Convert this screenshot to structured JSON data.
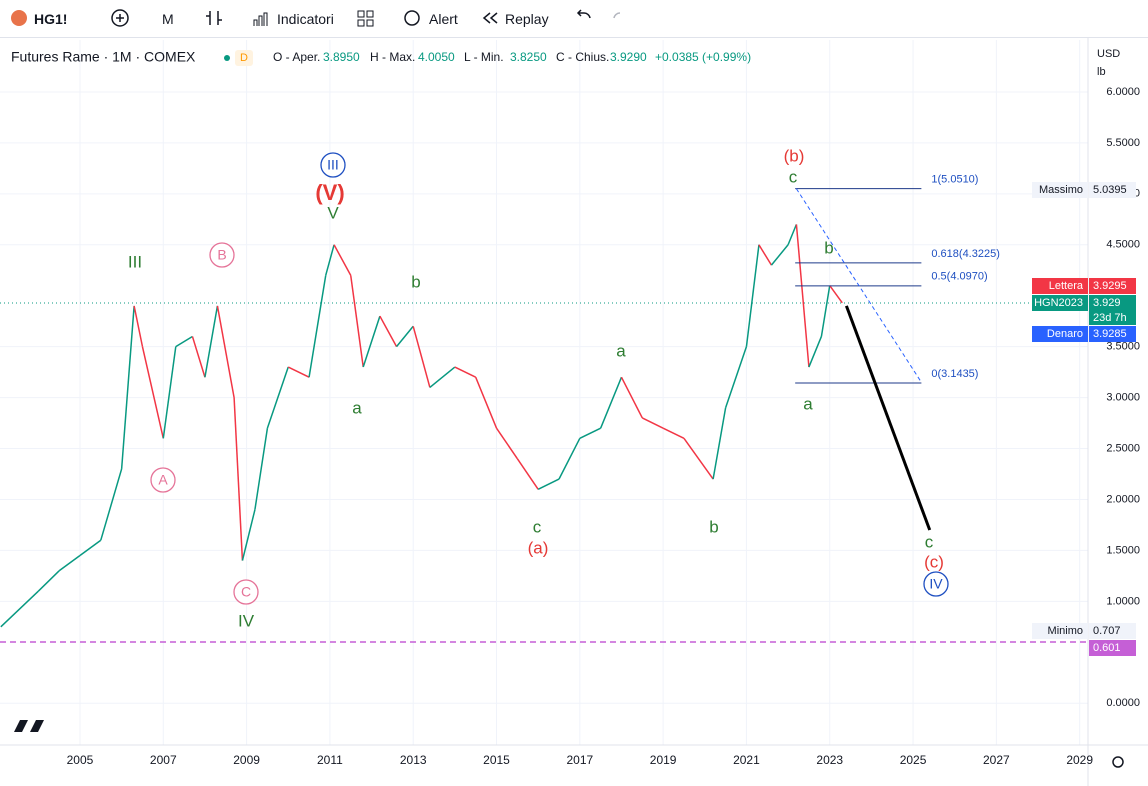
{
  "toolbar": {
    "symbol": "HG1!",
    "interval": "M",
    "indicators": "Indicatori",
    "alert": "Alert",
    "replay": "Replay"
  },
  "header": {
    "name": "Futures Rame · 1M · COMEX",
    "badge": "D",
    "open_label": "O - Aper.",
    "open": "3.8950",
    "high_label": "H - Max.",
    "high": "4.0050",
    "low_label": "L - Min.",
    "low": "3.8250",
    "close_label": "C - Chius.",
    "close": "3.9290",
    "change": "+0.0385 (+0.99%)"
  },
  "chart_data": {
    "type": "line",
    "currency": "USD",
    "unit": "lb",
    "x": [
      2003.1,
      2004,
      2004.5,
      2005,
      2005.5,
      2006,
      2006.3,
      2006.5,
      2007,
      2007.3,
      2007.7,
      2008,
      2008.3,
      2008.7,
      2008.9,
      2009.2,
      2009.5,
      2010,
      2010.5,
      2010.9,
      2011.1,
      2011.5,
      2011.8,
      2012.2,
      2012.6,
      2013,
      2013.4,
      2014,
      2014.5,
      2015,
      2015.5,
      2016,
      2016.5,
      2017,
      2017.5,
      2018,
      2018.5,
      2019,
      2019.5,
      2020.2,
      2020.5,
      2021,
      2021.3,
      2021.6,
      2022,
      2022.2,
      2022.5,
      2022.8,
      2023,
      2023.3
    ],
    "values": [
      0.75,
      1.1,
      1.3,
      1.45,
      1.6,
      2.3,
      3.9,
      3.5,
      2.6,
      3.5,
      3.6,
      3.2,
      3.9,
      3.0,
      1.4,
      1.9,
      2.7,
      3.3,
      3.2,
      4.2,
      4.5,
      4.2,
      3.3,
      3.8,
      3.5,
      3.7,
      3.1,
      3.3,
      3.2,
      2.7,
      2.4,
      2.1,
      2.2,
      2.6,
      2.7,
      3.2,
      2.8,
      2.7,
      2.6,
      2.2,
      2.9,
      3.5,
      4.5,
      4.3,
      4.5,
      4.7,
      3.3,
      3.6,
      4.1,
      3.93
    ],
    "xlim": [
      2003.08,
      2029.2
    ],
    "ylim": [
      -0.41,
      6.51
    ],
    "xticks": [
      2005,
      2007,
      2009,
      2011,
      2013,
      2015,
      2017,
      2019,
      2021,
      2023,
      2025,
      2027,
      2029
    ],
    "yticks": [
      {
        "value": 0,
        "label": "0.0000"
      },
      {
        "value": 1,
        "label": "1.0000"
      },
      {
        "value": 1.5,
        "label": "1.5000"
      },
      {
        "value": 2,
        "label": "2.0000"
      },
      {
        "value": 2.5,
        "label": "2.5000"
      },
      {
        "value": 3,
        "label": "3.0000"
      },
      {
        "value": 3.5,
        "label": "3.5000"
      },
      {
        "value": 4.5,
        "label": "4.5000"
      },
      {
        "value": 5,
        "label": "5.0000"
      },
      {
        "value": 5.5,
        "label": "5.5000"
      },
      {
        "value": 6,
        "label": "6.0000"
      }
    ],
    "last_price": 3.929,
    "minimum_line": 0.601,
    "price_tags": [
      {
        "label": "Massimo",
        "value": 5.0395
      },
      {
        "label": "Lettera",
        "value": 3.9295
      },
      {
        "label": "HGN2023",
        "value": 3.929,
        "extra": "23d 7h"
      },
      {
        "label": "Denaro",
        "value": 3.9285
      },
      {
        "label": "Minimo",
        "value": 0.707
      },
      {
        "value": 0.601
      }
    ],
    "fib_x": [
      2022.17,
      2025.2
    ],
    "fib_levels": [
      {
        "label": "1(5.0510)",
        "value": 5.051
      },
      {
        "label": "0.618(4.3225)",
        "value": 4.3225
      },
      {
        "label": "0.5(4.0970)",
        "value": 4.097
      },
      {
        "label": "0(3.1435)",
        "value": 3.1435
      }
    ],
    "trend_line": {
      "x": [
        2022.2,
        2025.2
      ],
      "values": [
        5.05,
        3.15
      ]
    },
    "projection": {
      "x": [
        2023.4,
        2025.4
      ],
      "values": [
        3.9,
        1.7
      ]
    },
    "wave_labels": [
      "III",
      "B",
      "A",
      "C",
      "IV",
      "III",
      "(V)",
      "V",
      "a",
      "b",
      "c",
      "(a)",
      "a",
      "b",
      "(b)",
      "c",
      "b",
      "a",
      "c",
      "(c)",
      "IV"
    ]
  }
}
